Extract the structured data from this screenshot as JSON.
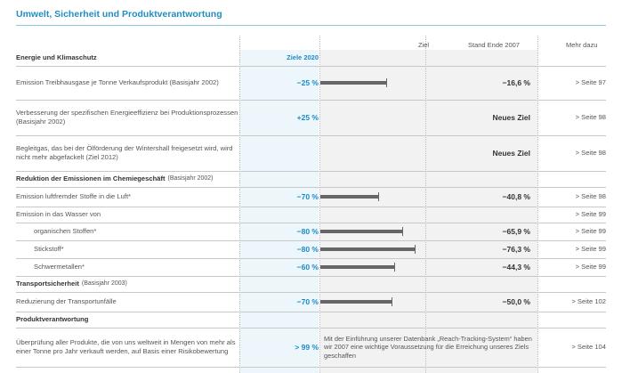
{
  "title": "Umwelt, Sicherheit und Produktverantwortung",
  "header": {
    "ziel": "Ziel",
    "stand": "Stand Ende 2007",
    "more": "Mehr dazu"
  },
  "sections": [
    {
      "label": "Energie und Klimaschutz",
      "target_header": "Ziele 2020"
    }
  ],
  "rows": [
    {
      "type": "section",
      "label": "Energie und Klimaschutz",
      "target": "Ziele 2020",
      "note": ""
    },
    {
      "type": "item",
      "label": "Emission Treibhausgase je Tonne Verkaufsprodukt (Basisjahr 2002)",
      "target": "−25 %",
      "progress": 0.66,
      "stand": "−16,6 %",
      "more": "> Seite 97"
    },
    {
      "type": "item",
      "label": "Verbesserung der spezifischen Energieeffizienz bei Produktionsprozessen (Basisjahr 2002)",
      "target": "+25 %",
      "progress": null,
      "stand": "Neues Ziel",
      "more": "> Seite 98"
    },
    {
      "type": "item",
      "label": "Begleitgas, das bei der Ölförderung der Wintershall freigesetzt wird, wird nicht mehr abgefackelt (Ziel 2012)",
      "target": "",
      "progress": null,
      "stand": "Neues Ziel",
      "more": "> Seite 98"
    },
    {
      "type": "section",
      "label": "Reduktion der Emissionen im Chemiegeschäft",
      "note": "(Basisjahr 2002)"
    },
    {
      "type": "item",
      "label": "Emission luftfremder Stoffe in die Luft*",
      "target": "−70 %",
      "progress": 0.58,
      "stand": "−40,8 %",
      "more": "> Seite 98"
    },
    {
      "type": "item",
      "label": "Emission in das Wasser von",
      "target": "",
      "progress": null,
      "stand": "",
      "more": "> Seite 99"
    },
    {
      "type": "sub",
      "label": "organischen Stoffen*",
      "target": "−80 %",
      "progress": 0.82,
      "stand": "−65,9 %",
      "more": "> Seite 99"
    },
    {
      "type": "sub",
      "label": "Stickstoff*",
      "target": "−80 %",
      "progress": 0.95,
      "stand": "−76,3 %",
      "more": "> Seite 99"
    },
    {
      "type": "sub",
      "label": "Schwermetallen*",
      "target": "−60 %",
      "progress": 0.74,
      "stand": "−44,3 %",
      "more": "> Seite 99"
    },
    {
      "type": "section",
      "label": "Transportsicherheit",
      "note": "(Basisjahr 2003)"
    },
    {
      "type": "item",
      "label": "Reduzierung der Transportunfälle",
      "target": "−70 %",
      "progress": 0.71,
      "stand": "−50,0 %",
      "more": "> Seite 102"
    },
    {
      "type": "section",
      "label": "Produktverantwortung",
      "note": ""
    },
    {
      "type": "text",
      "label": "Überprüfung aller Produkte, die von uns weltweit in Mengen von mehr als einer Tonne pro Jahr verkauft werden, auf Basis einer Risikobewertung",
      "target": "> 99 %",
      "standtext": "Mit der Einführung unserer Datenbank „Reach-Tracking-System“ haben wir 2007 eine wichtige Voraussetzung für die Erreichung unseres Ziels geschaffen",
      "more": "> Seite 104"
    }
  ]
}
